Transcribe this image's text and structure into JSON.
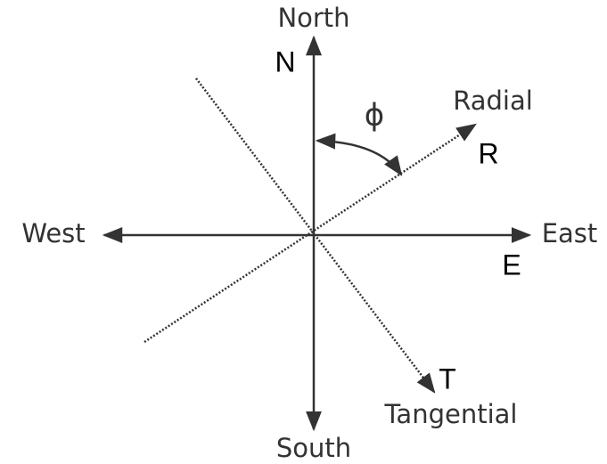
{
  "axes": {
    "north": {
      "label": "North",
      "symbol": "N"
    },
    "south": {
      "label": "South"
    },
    "west": {
      "label": "West"
    },
    "east": {
      "label": "East",
      "symbol": "E"
    }
  },
  "radial": {
    "label": "Radial",
    "symbol": "R"
  },
  "tangential": {
    "label": "Tangential",
    "symbol": "T"
  },
  "angle": {
    "symbol": "ϕ"
  }
}
